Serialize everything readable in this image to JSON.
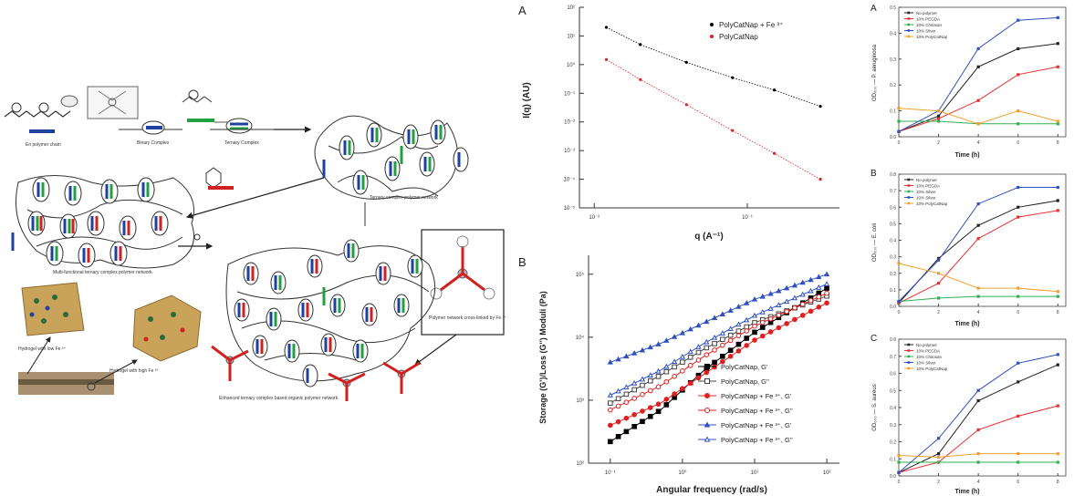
{
  "schematic": {
    "labels": {
      "chain": "En polymer chain",
      "binary": "Binary Complex",
      "ternary": "Ternary Complex",
      "ternary_network": "Ternary complex polymer network",
      "multifunctional": "Multi-functional ternary complex polymer network",
      "fe_crosslink": "Polymer network cross-linked by Fe ³⁺",
      "low_fe": "Hydrogel with low Fe ³⁺",
      "high_fe": "Hydrogel with high Fe ³⁺",
      "final": "Enhanced ternary complex based organic polymer network"
    }
  },
  "chart_data": [
    {
      "id": "saxs",
      "type": "scatter",
      "panel_label": "A",
      "xlabel": "q (A⁻¹)",
      "ylabel": "I(q) (AU)",
      "x_scale": "log",
      "y_scale": "log",
      "xlim": [
        0.008,
        0.4
      ],
      "ylim": [
        1e-05,
        100
      ],
      "x_ticks": [
        {
          "v": 0.01,
          "label": "10⁻²"
        },
        {
          "v": 0.1,
          "label": "10⁻¹"
        }
      ],
      "y_ticks": [
        {
          "v": 100,
          "label": "10²"
        },
        {
          "v": 10,
          "label": "10¹"
        },
        {
          "v": 1,
          "label": "10⁰"
        },
        {
          "v": 0.1,
          "label": "10⁻¹"
        },
        {
          "v": 0.01,
          "label": "10⁻²"
        },
        {
          "v": 0.001,
          "label": "10⁻³"
        },
        {
          "v": 0.0001,
          "label": "10⁻⁴"
        },
        {
          "v": 1e-05,
          "label": "10⁻⁵"
        }
      ],
      "legend": "top-right",
      "series": [
        {
          "name": "PolyCatNap + Fe ³⁺",
          "color": "#000000",
          "x": [
            0.012,
            0.02,
            0.04,
            0.08,
            0.15,
            0.3
          ],
          "y": [
            20,
            5,
            1.2,
            0.35,
            0.13,
            0.035
          ]
        },
        {
          "name": "PolyCatNap",
          "color": "#e02020",
          "x": [
            0.012,
            0.02,
            0.04,
            0.08,
            0.15,
            0.3
          ],
          "y": [
            1.5,
            0.3,
            0.04,
            0.005,
            0.0008,
            0.0001
          ]
        }
      ]
    },
    {
      "id": "rheology",
      "type": "line",
      "panel_label": "B",
      "xlabel": "Angular frequency (rad/s)",
      "ylabel": "Storage (G')/Loss (G'') Moduli (Pa)",
      "x_scale": "log",
      "y_scale": "log",
      "xlim": [
        0.05,
        150
      ],
      "ylim": [
        100,
        200000
      ],
      "x_ticks": [
        {
          "v": 0.1,
          "label": "10⁻¹"
        },
        {
          "v": 1,
          "label": "10⁰"
        },
        {
          "v": 10,
          "label": "10¹"
        },
        {
          "v": 100,
          "label": "10²"
        }
      ],
      "y_ticks": [
        {
          "v": 100000,
          "label": "10⁵"
        },
        {
          "v": 10000,
          "label": "10⁴"
        },
        {
          "v": 1000,
          "label": "10³"
        },
        {
          "v": 100,
          "label": "10²"
        }
      ],
      "legend": "bottom-right",
      "series": [
        {
          "name": "PolyCatNap, G'",
          "color": "#000000",
          "filled": true,
          "marker": "square",
          "y": [
            220,
            700,
            3000,
            12000,
            60000
          ]
        },
        {
          "name": "PolyCatNap, G''",
          "color": "#444444",
          "filled": false,
          "marker": "square",
          "y": [
            900,
            2500,
            6500,
            17000,
            45000
          ]
        },
        {
          "name": "PolyCatNap + Fe ³⁺, G'",
          "color": "#e02020",
          "filled": true,
          "marker": "circle",
          "y": [
            400,
            900,
            2600,
            9000,
            35000
          ]
        },
        {
          "name": "PolyCatNap + Fe ³⁺, G''",
          "color": "#e02020",
          "filled": false,
          "marker": "circle",
          "y": [
            700,
            1700,
            5000,
            15000,
            50000
          ]
        },
        {
          "name": "PolyCatNap + Fe ³⁺, G'",
          "color": "#3050c0",
          "filled": true,
          "marker": "triangle",
          "y": [
            4000,
            8000,
            17000,
            40000,
            100000
          ]
        },
        {
          "name": "PolyCatNap + Fe ³⁺, G''",
          "color": "#3050c0",
          "filled": false,
          "marker": "triangle",
          "y": [
            1200,
            3000,
            8000,
            22000,
            70000
          ]
        }
      ],
      "x": [
        0.1,
        0.5,
        2,
        10,
        100
      ]
    },
    {
      "id": "growth_a",
      "type": "line",
      "panel_label": "A",
      "xlabel": "Time (h)",
      "ylabel": "OD₆₀₀ — P. aeruginosa",
      "x": [
        0,
        2,
        4,
        6,
        8
      ],
      "xlim": [
        0,
        8.4
      ],
      "ylim": [
        0,
        0.5
      ],
      "y_ticks": [
        0,
        0.1,
        0.2,
        0.3,
        0.4,
        0.5
      ],
      "x_ticks": [
        0,
        2,
        4,
        6,
        8
      ],
      "legend": "top-left",
      "series": [
        {
          "name": "No polymer",
          "color": "#222222",
          "y": [
            0.02,
            0.08,
            0.27,
            0.34,
            0.36
          ]
        },
        {
          "name": "10% PEGDA",
          "color": "#e83030",
          "y": [
            0.02,
            0.07,
            0.14,
            0.24,
            0.27
          ]
        },
        {
          "name": "10% Chitosan",
          "color": "#30b050",
          "y": [
            0.06,
            0.06,
            0.05,
            0.05,
            0.05
          ]
        },
        {
          "name": "10% Silver",
          "color": "#3050c0",
          "y": [
            0.02,
            0.1,
            0.34,
            0.45,
            0.46
          ]
        },
        {
          "name": "10% PolyCatNap",
          "color": "#f0a030",
          "y": [
            0.11,
            0.1,
            0.05,
            0.1,
            0.06
          ]
        }
      ]
    },
    {
      "id": "growth_b",
      "type": "line",
      "panel_label": "B",
      "xlabel": "Time (h)",
      "ylabel": "OD₆₀₀ — E. coli",
      "x": [
        0,
        2,
        4,
        6,
        8
      ],
      "xlim": [
        0,
        8.4
      ],
      "ylim": [
        0,
        0.8
      ],
      "y_ticks": [
        0,
        0.1,
        0.2,
        0.3,
        0.4,
        0.5,
        0.6,
        0.7,
        0.8
      ],
      "x_ticks": [
        0,
        2,
        4,
        6,
        8
      ],
      "legend": "top-left",
      "series": [
        {
          "name": "No polymer",
          "color": "#222222",
          "y": [
            0.02,
            0.29,
            0.49,
            0.6,
            0.64
          ]
        },
        {
          "name": "10% PEGDA",
          "color": "#e83030",
          "y": [
            0.02,
            0.14,
            0.41,
            0.54,
            0.58
          ]
        },
        {
          "name": "10% Silver",
          "color": "#30b050",
          "y": [
            0.03,
            0.05,
            0.06,
            0.06,
            0.06
          ]
        },
        {
          "name": "10% Silver",
          "color": "#3050c0",
          "y": [
            0.03,
            0.28,
            0.62,
            0.72,
            0.72
          ]
        },
        {
          "name": "10% PolyCatNap",
          "color": "#f0a030",
          "y": [
            0.26,
            0.2,
            0.11,
            0.11,
            0.09
          ]
        }
      ]
    },
    {
      "id": "growth_c",
      "type": "line",
      "panel_label": "C",
      "xlabel": "Time (h)",
      "ylabel": "OD₆₀₀ — S. aureus",
      "x": [
        0,
        2,
        4,
        6,
        8
      ],
      "xlim": [
        0,
        8.4
      ],
      "ylim": [
        0,
        0.8
      ],
      "y_ticks": [
        0,
        0.1,
        0.2,
        0.3,
        0.4,
        0.5,
        0.6,
        0.7,
        0.8
      ],
      "x_ticks": [
        0,
        2,
        4,
        6,
        8
      ],
      "legend": "top-left",
      "series": [
        {
          "name": "No polymer",
          "color": "#222222",
          "y": [
            0.02,
            0.13,
            0.44,
            0.55,
            0.65
          ]
        },
        {
          "name": "10% PEGDA",
          "color": "#e83030",
          "y": [
            0.02,
            0.08,
            0.27,
            0.35,
            0.41
          ]
        },
        {
          "name": "10% Chitosan",
          "color": "#30b050",
          "y": [
            0.08,
            0.08,
            0.08,
            0.08,
            0.08
          ]
        },
        {
          "name": "10% Silver",
          "color": "#3050c0",
          "y": [
            0.02,
            0.22,
            0.5,
            0.66,
            0.71
          ]
        },
        {
          "name": "10% PolyCatNap",
          "color": "#f0a030",
          "y": [
            0.12,
            0.11,
            0.13,
            0.13,
            0.13
          ]
        }
      ]
    }
  ]
}
